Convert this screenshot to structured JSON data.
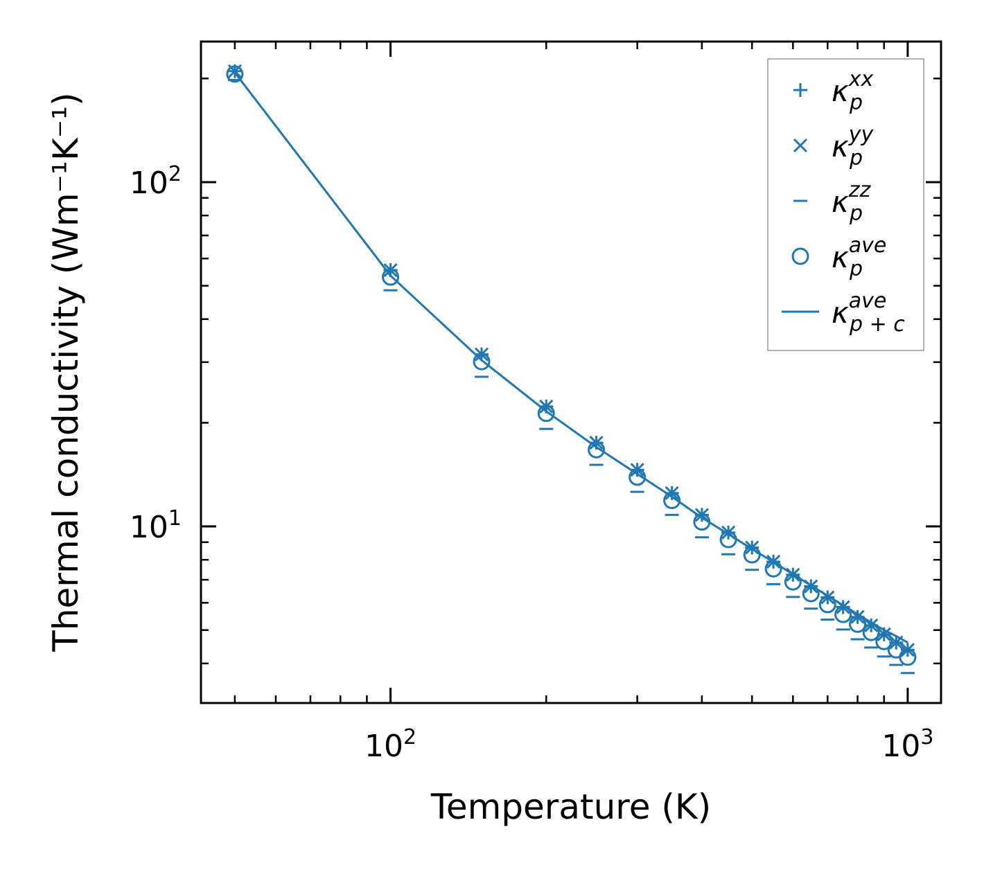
{
  "chart_data": {
    "type": "scatter",
    "title": "",
    "xlabel": "Temperature (K)",
    "ylabel": "Thermal conductivity (Wm⁻¹K⁻¹)",
    "xscale": "log",
    "yscale": "log",
    "xlim": [
      43,
      1160
    ],
    "ylim": [
      3.07,
      256
    ],
    "x_ticks": [
      {
        "value": 100,
        "base": "10",
        "exp": "2"
      },
      {
        "value": 1000,
        "base": "10",
        "exp": "3"
      }
    ],
    "y_ticks": [
      {
        "value": 10,
        "base": "10",
        "exp": "1"
      },
      {
        "value": 100,
        "base": "10",
        "exp": "2"
      }
    ],
    "legend_position": "top-right",
    "color": "#1f77b4",
    "x": [
      50,
      100,
      150,
      200,
      250,
      300,
      350,
      400,
      450,
      500,
      550,
      600,
      650,
      700,
      750,
      800,
      850,
      900,
      950,
      1000
    ],
    "series": [
      {
        "name": "kappa_p_xx",
        "marker": "plus",
        "symbol": "κ",
        "sub": "p",
        "sup": "xx",
        "values": [
          210,
          55.5,
          31.6,
          22.3,
          17.5,
          14.6,
          12.5,
          10.8,
          9.6,
          8.68,
          7.9,
          7.24,
          6.7,
          6.22,
          5.83,
          5.46,
          5.16,
          4.86,
          4.6,
          4.38
        ]
      },
      {
        "name": "kappa_p_yy",
        "marker": "x",
        "symbol": "κ",
        "sub": "p",
        "sup": "yy",
        "values": [
          210,
          55.5,
          31.6,
          22.3,
          17.5,
          14.6,
          12.5,
          10.8,
          9.6,
          8.68,
          7.9,
          7.24,
          6.7,
          6.22,
          5.83,
          5.46,
          5.16,
          4.86,
          4.6,
          4.38
        ]
      },
      {
        "name": "kappa_p_zz",
        "marker": "hline",
        "symbol": "κ",
        "sub": "p",
        "sup": "zz",
        "values": [
          198,
          48.5,
          27.2,
          19.2,
          15.1,
          12.6,
          10.8,
          9.3,
          8.3,
          7.48,
          6.8,
          6.24,
          5.77,
          5.36,
          5.02,
          4.7,
          4.45,
          4.19,
          3.96,
          3.75
        ]
      },
      {
        "name": "kappa_p_ave",
        "marker": "circle",
        "symbol": "κ",
        "sub": "p",
        "sup": "ave",
        "values": [
          206,
          53,
          30.1,
          21.3,
          16.7,
          13.9,
          11.9,
          10.3,
          9.16,
          8.27,
          7.53,
          6.9,
          6.38,
          5.93,
          5.55,
          5.2,
          4.92,
          4.63,
          4.38,
          4.17
        ]
      },
      {
        "name": "kappa_p+c_ave",
        "marker": "line",
        "symbol": "κ",
        "sub": "p + c",
        "sup": "ave",
        "values": [
          208,
          53.5,
          30.4,
          21.6,
          17.0,
          14.2,
          12.2,
          10.6,
          9.5,
          8.6,
          7.88,
          7.26,
          6.74,
          6.29,
          5.9,
          5.56,
          5.26,
          5.0,
          4.8,
          4.6
        ]
      }
    ]
  }
}
